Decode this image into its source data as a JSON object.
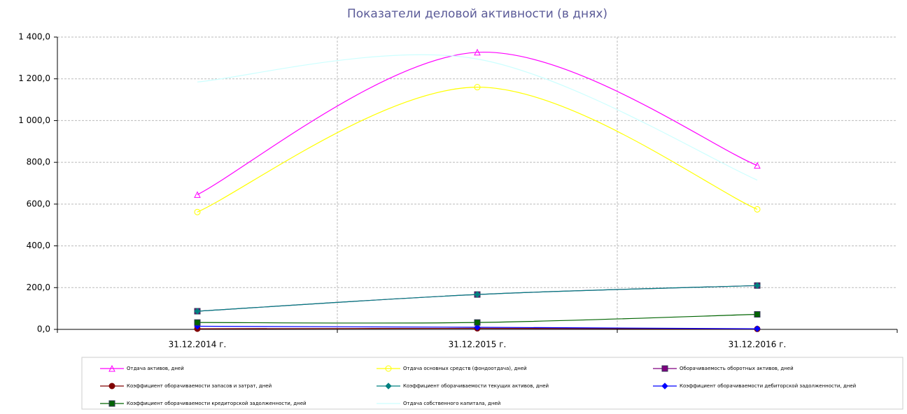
{
  "chart_data": {
    "type": "line",
    "title": "Показатели деловой активности (в днях)",
    "categories": [
      "31.12.2014 г.",
      "31.12.2015 г.",
      "31.12.2016 г."
    ],
    "series": [
      {
        "name": "Отдача активов, дней",
        "color": "#ff00ff",
        "marker": "triangle",
        "values": [
          645,
          1327,
          785
        ]
      },
      {
        "name": "Отдача основных средств (фондоотдача), дней",
        "color": "#ffff00",
        "marker": "circle",
        "values": [
          562,
          1160,
          575
        ]
      },
      {
        "name": "Оборачиваемость оборотных активов, дней",
        "color": "#800080",
        "marker": "square",
        "values": [
          87,
          167,
          210
        ]
      },
      {
        "name": "Коэффициент оборачиваемости запасов и затрат, дней",
        "color": "#800000",
        "marker": "circle",
        "values": [
          3,
          5,
          2
        ]
      },
      {
        "name": "Коэффициент оборачиваемости текущих активов, дней",
        "color": "#008080",
        "marker": "diamond",
        "values": [
          87,
          167,
          210
        ]
      },
      {
        "name": "Коэффициент оборачиваемости дебиторской задолженности, дней",
        "color": "#0000ff",
        "marker": "diamond",
        "values": [
          15,
          10,
          3
        ]
      },
      {
        "name": "Коэффициент оборачиваемости кредиторской задолженности, дней",
        "color": "#006400",
        "marker": "square",
        "values": [
          33,
          33,
          72
        ]
      },
      {
        "name": "Отдача собственного капитала, дней",
        "color": "#ccffff",
        "marker": "none",
        "values": [
          1185,
          1295,
          715
        ]
      }
    ],
    "ylim": [
      0,
      1400
    ],
    "yticks": [
      {
        "value": 0,
        "label": "0,0"
      },
      {
        "value": 200,
        "label": "200,0"
      },
      {
        "value": 400,
        "label": "400,0"
      },
      {
        "value": 600,
        "label": "600,0"
      },
      {
        "value": 800,
        "label": "800,0"
      },
      {
        "value": 1000,
        "label": "1 000,0"
      },
      {
        "value": 1200,
        "label": "1 200,0"
      },
      {
        "value": 1400,
        "label": "1 400,0"
      }
    ],
    "grid": true,
    "smooth": true,
    "legend": "bottom"
  }
}
